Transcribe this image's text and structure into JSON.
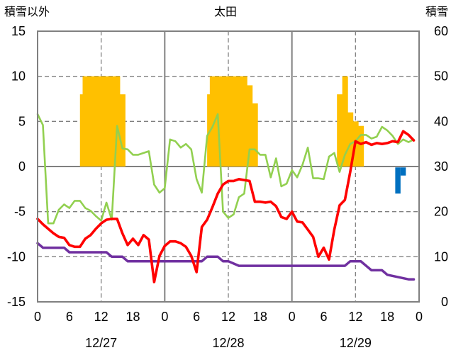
{
  "chart_data": {
    "type": "line",
    "title": "太田",
    "y_left_label": "積雪以外",
    "y_right_label": "積雪",
    "y_left_range": [
      -15,
      15
    ],
    "y_left_ticks": [
      15,
      10,
      5,
      0,
      -5,
      -10,
      -15
    ],
    "y_right_range": [
      0,
      60
    ],
    "y_right_ticks": [
      60,
      50,
      40,
      30,
      20,
      10,
      0
    ],
    "x_range_hours": [
      0,
      72
    ],
    "x_tick_labels": [
      "0",
      "6",
      "12",
      "18",
      "0",
      "6",
      "12",
      "18",
      "0",
      "6",
      "12",
      "18",
      "0"
    ],
    "date_labels": [
      "12/27",
      "12/28",
      "12/29"
    ],
    "grid": "dashed vertical lines at 12:00, solid vertical lines at midnight",
    "colors": {
      "snow_depth": "#ffc000",
      "precipitation": "#0070c0",
      "temperature": "#ff0000",
      "humidity_green": "#92d050",
      "purple_series": "#7030a0",
      "grid": "#808080"
    },
    "snow_depth_right_axis": {
      "bars": [
        {
          "h": 8.5,
          "v": 46
        },
        {
          "h": 9,
          "v": 50
        },
        {
          "h": 10,
          "v": 50
        },
        {
          "h": 11,
          "v": 50
        },
        {
          "h": 12,
          "v": 50
        },
        {
          "h": 13,
          "v": 50
        },
        {
          "h": 14,
          "v": 50
        },
        {
          "h": 15,
          "v": 50
        },
        {
          "h": 16,
          "v": 46
        },
        {
          "h": 9,
          "v": 0
        },
        {
          "h": 32.5,
          "v": 46
        },
        {
          "h": 33,
          "v": 50
        },
        {
          "h": 34,
          "v": 50
        },
        {
          "h": 35,
          "v": 50
        },
        {
          "h": 36,
          "v": 50
        },
        {
          "h": 37,
          "v": 50
        },
        {
          "h": 38,
          "v": 50
        },
        {
          "h": 39,
          "v": 50
        },
        {
          "h": 40,
          "v": 48
        },
        {
          "h": 41,
          "v": 44
        },
        {
          "h": 57,
          "v": 46
        },
        {
          "h": 58,
          "v": 50
        },
        {
          "h": 59,
          "v": 42
        },
        {
          "h": 60,
          "v": 40
        },
        {
          "h": 61,
          "v": 39
        }
      ]
    },
    "precipitation": [
      {
        "h": 68,
        "v": -3
      },
      {
        "h": 69,
        "v": -1
      }
    ],
    "temperature": {
      "x": [
        0,
        1,
        2,
        3,
        4,
        5,
        6,
        7,
        8,
        9,
        10,
        11,
        12,
        13,
        14,
        15,
        16,
        17,
        18,
        19,
        20,
        21,
        22,
        23,
        24,
        25,
        26,
        27,
        28,
        29,
        30,
        31,
        32,
        33,
        34,
        35,
        36,
        37,
        38,
        39,
        40,
        41,
        42,
        43,
        44,
        45,
        46,
        47,
        48,
        49,
        50,
        51,
        52,
        53,
        54,
        55,
        56,
        57,
        58,
        59,
        60,
        61,
        62,
        63,
        64,
        65,
        66,
        67,
        68,
        69,
        70,
        71
      ],
      "y": [
        -5.8,
        -6.4,
        -6.9,
        -7.4,
        -7.8,
        -7.9,
        -8.7,
        -8.9,
        -8.9,
        -8.0,
        -7.6,
        -6.9,
        -6.3,
        -5.9,
        -5.8,
        -5.8,
        -7.4,
        -8.7,
        -8.0,
        -8.7,
        -7.6,
        -8.1,
        -12.8,
        -9.9,
        -8.8,
        -8.3,
        -8.3,
        -8.5,
        -8.9,
        -9.9,
        -11.7,
        -6.7,
        -5.9,
        -4.5,
        -3.0,
        -2.0,
        -1.6,
        -1.6,
        -1.4,
        -1.5,
        -1.6,
        -3.9,
        -3.9,
        -4.0,
        -3.9,
        -4.4,
        -5.6,
        -5.8,
        -5.0,
        -6.1,
        -6.2,
        -7.0,
        -7.8,
        -10.0,
        -9.0,
        -10.3,
        -7.0,
        -4.3,
        -3.7,
        -0.6,
        2.8,
        2.5,
        2.7,
        2.4,
        2.6,
        2.5,
        2.6,
        2.8,
        2.7,
        3.9,
        3.5,
        2.9
      ]
    },
    "green_series": {
      "x": [
        0,
        1,
        2,
        3,
        4,
        5,
        6,
        7,
        8,
        9,
        10,
        11,
        12,
        13,
        14,
        15,
        16,
        17,
        18,
        19,
        20,
        21,
        22,
        23,
        24,
        25,
        26,
        27,
        28,
        29,
        30,
        31,
        32,
        33,
        34,
        35,
        36,
        37,
        38,
        39,
        40,
        41,
        42,
        43,
        44,
        45,
        46,
        47,
        48,
        49,
        50,
        51,
        52,
        53,
        54,
        55,
        56,
        57,
        58,
        59,
        60,
        61,
        62,
        63,
        64,
        65,
        66,
        67,
        68,
        69,
        70,
        71
      ],
      "y": [
        5.8,
        4.6,
        -6.3,
        -6.3,
        -4.8,
        -4.2,
        -4.6,
        -3.8,
        -3.8,
        -4.6,
        -4.9,
        -5.5,
        -6.0,
        -4.0,
        -5.9,
        4.5,
        2.0,
        1.9,
        1.3,
        1.3,
        1.5,
        1.7,
        -2.0,
        -2.9,
        -2.4,
        3.0,
        2.8,
        2.1,
        2.5,
        1.9,
        -1.4,
        -2.9,
        3.4,
        4.4,
        5.8,
        -5.0,
        -5.7,
        -5.3,
        -3.4,
        -3.0,
        1.9,
        1.9,
        1.3,
        1.3,
        -1.2,
        0.9,
        -2.2,
        -1.9,
        -0.4,
        -1.2,
        0.2,
        2.1,
        -1.3,
        -1.3,
        -1.4,
        1.1,
        1.5,
        -0.6,
        1.3,
        2.5,
        2.8,
        3.5,
        3.5,
        3.1,
        3.3,
        4.4,
        4.0,
        3.4,
        2.5,
        3.0,
        2.7,
        3.0
      ]
    },
    "purple_series": {
      "x": [
        0,
        1,
        5,
        6,
        13,
        14,
        16,
        17,
        31,
        32,
        34,
        35,
        36,
        38,
        43,
        47,
        55,
        58,
        59,
        60,
        61,
        62,
        63,
        65,
        66,
        70,
        71
      ],
      "y": [
        -8.5,
        -9,
        -9,
        -9.5,
        -9.5,
        -10,
        -10,
        -10.5,
        -10.5,
        -10,
        -10,
        -10.5,
        -10.5,
        -11,
        -11,
        -11,
        -11,
        -11,
        -10.5,
        -10.5,
        -10.5,
        -11,
        -11.5,
        -11.5,
        -12,
        -12.5,
        -12.5
      ]
    }
  }
}
